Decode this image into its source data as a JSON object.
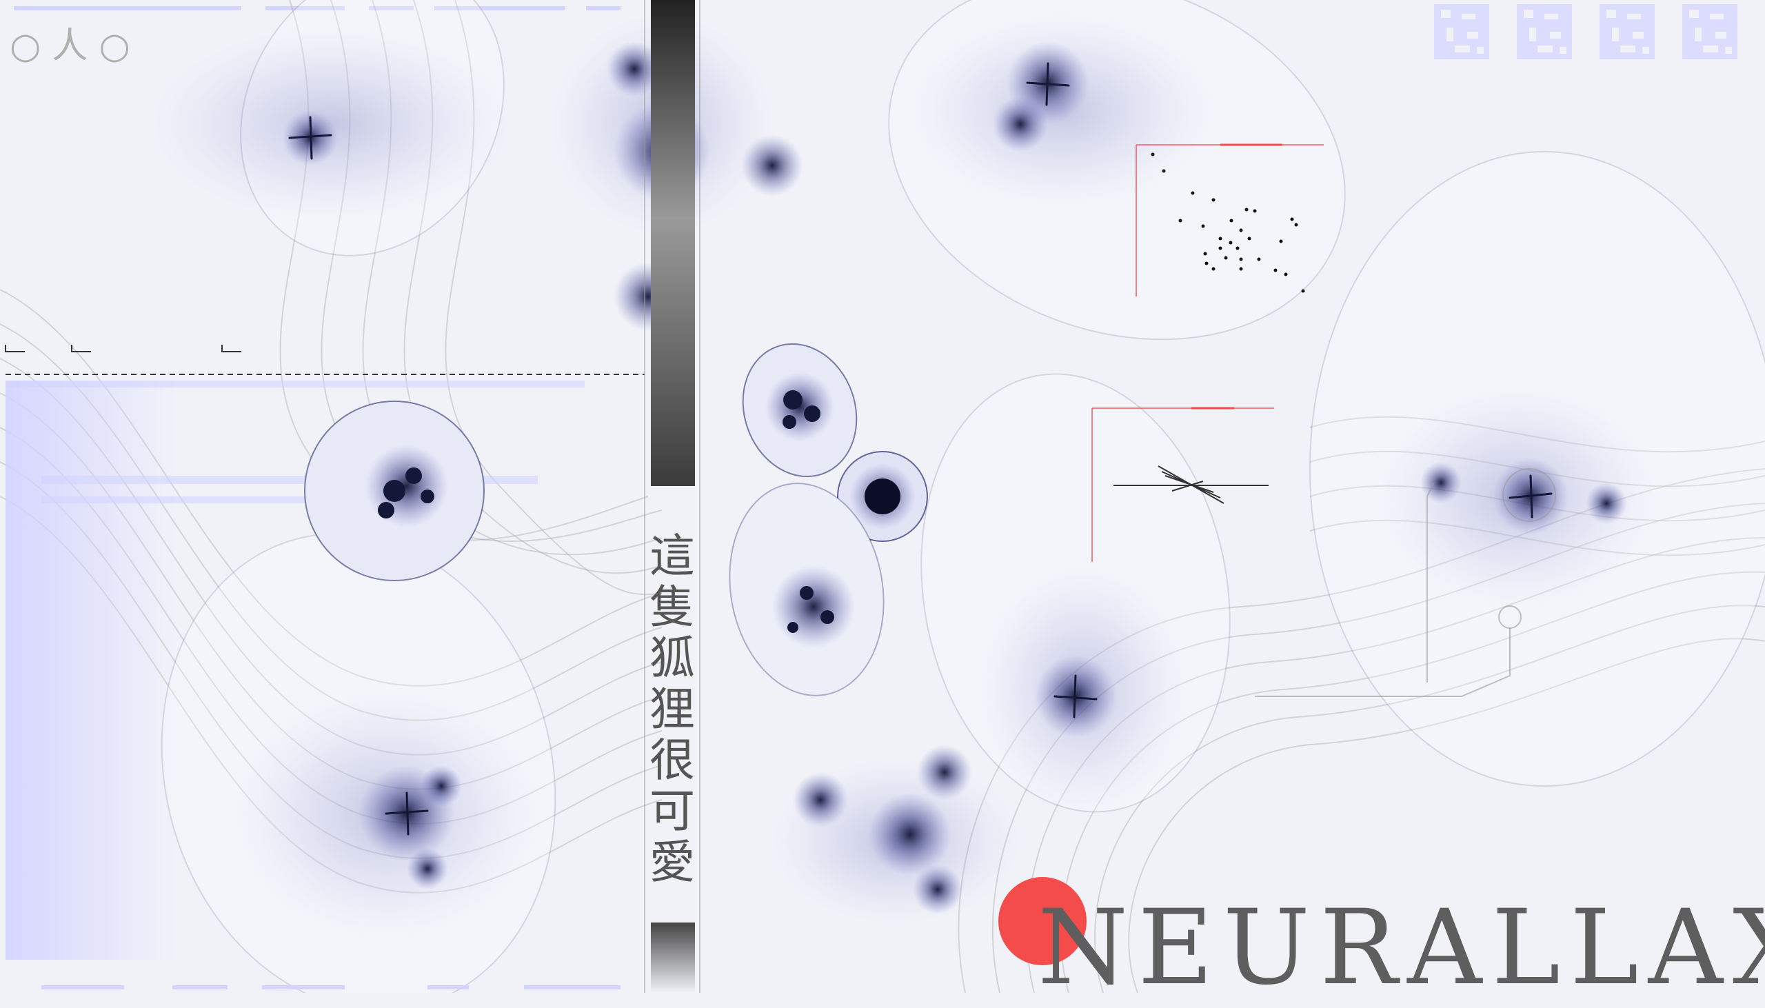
{
  "vertical_text": "這隻狐狸很可愛",
  "brand": "NEURALLAX",
  "corner_glyphs": "○人○",
  "colors": {
    "background": "#f1f2f8",
    "accent": "#f44b4b",
    "ink": "#141838",
    "lavender": "#d2d3ff",
    "text": "#5e5e5e"
  },
  "icons": [
    "qr-code-icon",
    "qr-code-icon",
    "qr-code-icon",
    "qr-code-icon"
  ]
}
